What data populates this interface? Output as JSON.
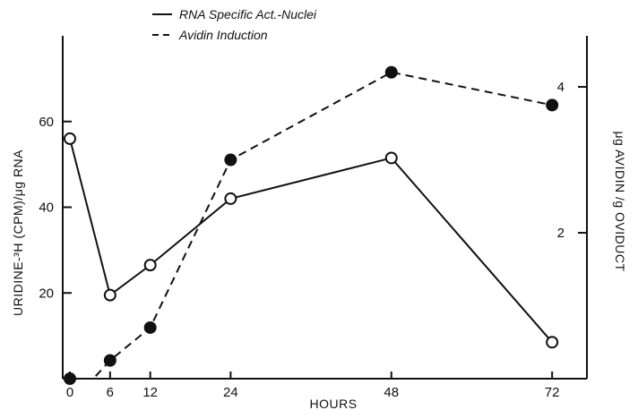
{
  "chart_data": {
    "type": "line",
    "title": "",
    "xlabel": "HOURS",
    "ylabel_left": "URIDINE-³H (CPM)/μg RNA",
    "ylabel_right": "μg AVIDIN /g OVIDUCT",
    "x_ticks": [
      0,
      6,
      12,
      24,
      48,
      72
    ],
    "y_left_ticks": [
      20,
      40,
      60
    ],
    "y_right_ticks": [
      2,
      4
    ],
    "xlim": [
      0,
      78
    ],
    "ylim_left": [
      0,
      80
    ],
    "ylim_right": [
      0,
      4.7
    ],
    "grid": false,
    "legend_position": "top-left",
    "series": [
      {
        "name": "RNA Specific Act.-Nuclei",
        "axis": "left",
        "style": "solid",
        "marker": "open-circle",
        "x": [
          0,
          6,
          12,
          24,
          48,
          72
        ],
        "y": [
          56,
          19.5,
          26.5,
          42,
          51.5,
          8.5
        ]
      },
      {
        "name": "Avidin Induction",
        "axis": "right",
        "style": "dashed",
        "marker": "filled-circle",
        "x": [
          0,
          3.5,
          6,
          12,
          24,
          48,
          72
        ],
        "y": [
          0,
          0,
          0.25,
          0.7,
          3.0,
          4.2,
          3.75
        ]
      }
    ]
  }
}
